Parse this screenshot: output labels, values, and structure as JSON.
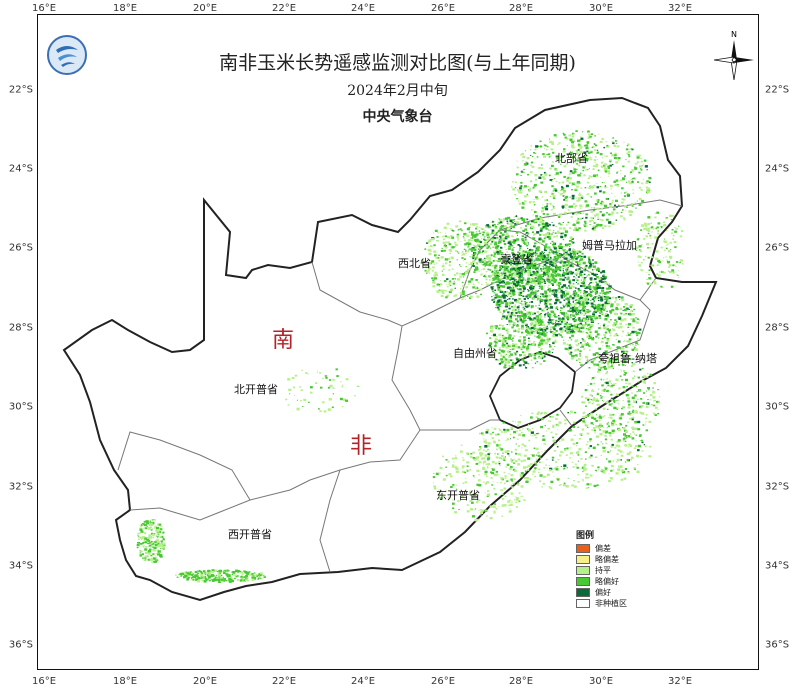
{
  "title": "南非玉米长势遥感监测对比图(与上年同期)",
  "subtitle": "2024年2月中旬",
  "organization": "中央气象台",
  "north_label": "N",
  "country_label_1": "南",
  "country_label_2": "非",
  "lon_labels": [
    "16°E",
    "18°E",
    "20°E",
    "22°E",
    "24°E",
    "26°E",
    "28°E",
    "30°E",
    "32°E"
  ],
  "lat_labels": [
    "22°S",
    "24°S",
    "26°S",
    "28°S",
    "30°S",
    "32°S",
    "34°S",
    "36°S"
  ],
  "provinces": {
    "limpopo": "北部省",
    "mpumalanga": "姆普马拉加",
    "northwest": "西北省",
    "gauteng": "豪登省",
    "freestate": "自由州省",
    "kzn": "夸祖鲁-纳塔",
    "northern_cape": "北开普省",
    "eastern_cape": "东开普省",
    "western_cape": "西开普省"
  },
  "legend": {
    "title": "图例",
    "items": [
      {
        "label": "偏差",
        "color": "#e8601c"
      },
      {
        "label": "略偏差",
        "color": "#f5ef8c"
      },
      {
        "label": "持平",
        "color": "#b6f08a"
      },
      {
        "label": "略偏好",
        "color": "#48c832"
      },
      {
        "label": "偏好",
        "color": "#0b6a3a"
      },
      {
        "label": "非种植区",
        "color": "#ffffff"
      }
    ]
  }
}
